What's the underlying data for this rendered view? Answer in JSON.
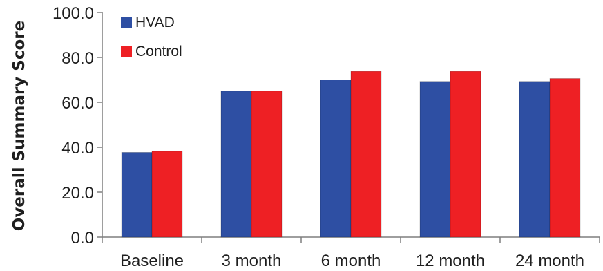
{
  "chart_data": {
    "type": "bar",
    "title": "",
    "xlabel": "",
    "ylabel": "Overall Summary Score",
    "categories": [
      "Baseline",
      "3 month",
      "6 month",
      "12 month",
      "24 month"
    ],
    "series": [
      {
        "name": "HVAD",
        "color": "#2e4fa3",
        "values": [
          37.7,
          65.0,
          70.0,
          69.3,
          69.3
        ]
      },
      {
        "name": "Control",
        "color": "#ee2024",
        "values": [
          38.2,
          65.0,
          73.8,
          73.8,
          70.6
        ]
      }
    ],
    "ylim": [
      0,
      100
    ],
    "yticks": [
      "0.0",
      "20.0",
      "40.0",
      "60.0",
      "80.0",
      "100.0"
    ],
    "grid": false,
    "legend_position": "top-left"
  }
}
